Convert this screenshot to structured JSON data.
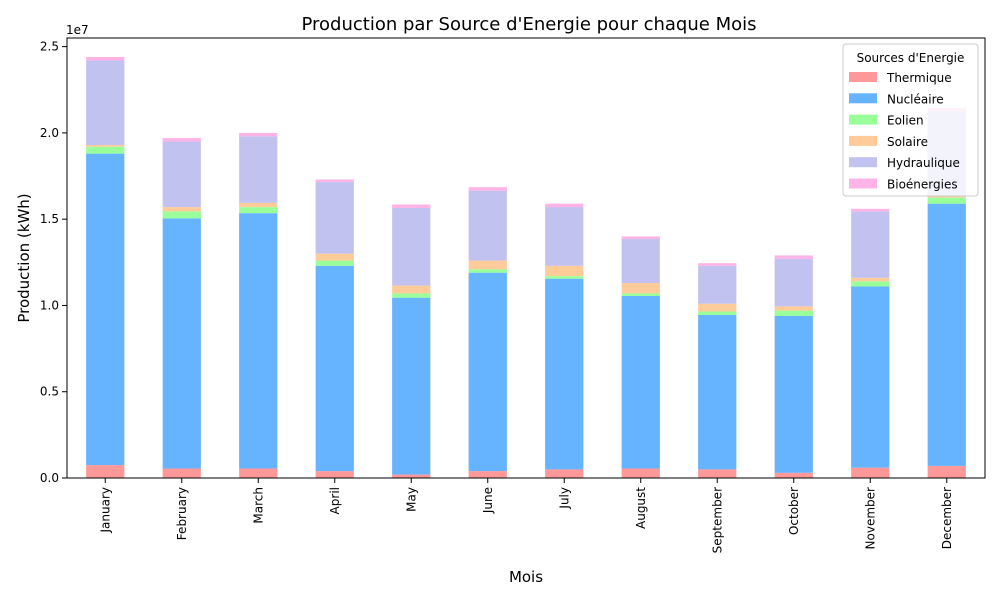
{
  "chart_data": {
    "type": "bar",
    "stacked": true,
    "title": "Production par Source d'Energie pour chaque Mois",
    "xlabel": "Mois",
    "ylabel": "Production (kWh)",
    "y_multiplier_label": "1e7",
    "ylim": [
      0,
      25.5
    ],
    "y_ticks": [
      0.0,
      0.5,
      1.0,
      1.5,
      2.0,
      2.5
    ],
    "y_tick_labels": [
      "0.0",
      "0.5",
      "1.0",
      "1.5",
      "2.0",
      "2.5"
    ],
    "categories": [
      "January",
      "February",
      "March",
      "April",
      "May",
      "June",
      "July",
      "August",
      "September",
      "October",
      "November",
      "December"
    ],
    "series": [
      {
        "name": "Thermique",
        "color": "#ff9999",
        "values": [
          0.75,
          0.55,
          0.55,
          0.4,
          0.2,
          0.4,
          0.5,
          0.55,
          0.5,
          0.3,
          0.6,
          0.7
        ]
      },
      {
        "name": "Nucléaire",
        "color": "#66b3ff",
        "values": [
          18.05,
          14.5,
          14.8,
          11.9,
          10.25,
          11.5,
          11.05,
          10.0,
          8.95,
          9.1,
          10.5,
          15.2
        ]
      },
      {
        "name": "Eolien",
        "color": "#99ff99",
        "values": [
          0.4,
          0.4,
          0.35,
          0.3,
          0.25,
          0.2,
          0.15,
          0.15,
          0.2,
          0.3,
          0.3,
          0.35
        ]
      },
      {
        "name": "Solaire",
        "color": "#ffcc99",
        "values": [
          0.1,
          0.25,
          0.25,
          0.4,
          0.45,
          0.5,
          0.6,
          0.6,
          0.45,
          0.25,
          0.2,
          0.1
        ]
      },
      {
        "name": "Hydraulique",
        "color": "#c2c2f0",
        "values": [
          4.9,
          3.8,
          3.85,
          4.15,
          4.5,
          4.05,
          3.4,
          2.55,
          2.2,
          2.75,
          3.85,
          4.9
        ]
      },
      {
        "name": "Bioénergies",
        "color": "#ffb3e6",
        "values": [
          0.2,
          0.2,
          0.2,
          0.15,
          0.2,
          0.2,
          0.2,
          0.15,
          0.15,
          0.2,
          0.15,
          0.2
        ]
      }
    ],
    "legend": {
      "title": "Sources d'Energie",
      "placement": "top-right"
    },
    "grid": false
  }
}
